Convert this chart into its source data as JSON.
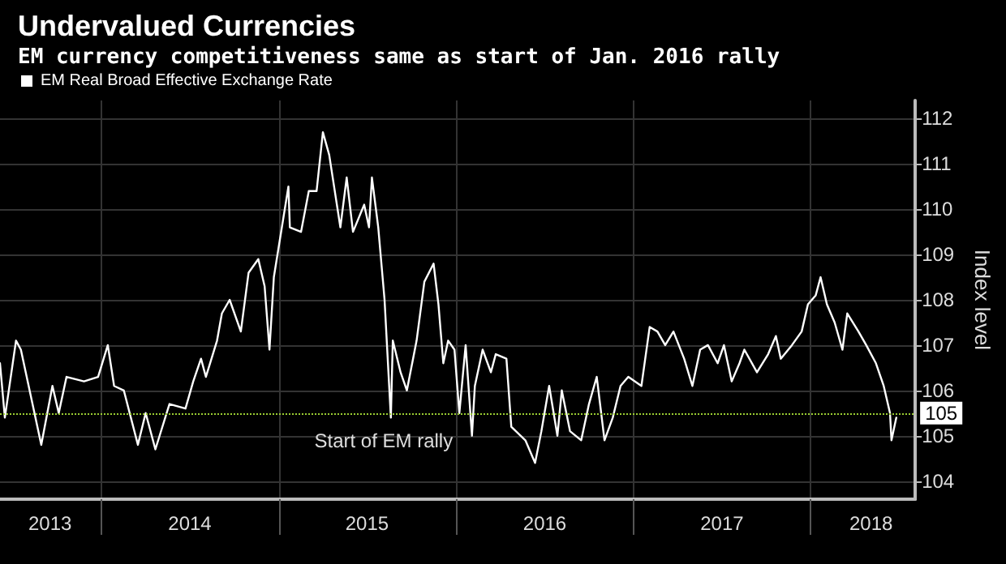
{
  "chart_data": {
    "type": "line",
    "title": "Undervalued Currencies",
    "subtitle": "EM currency competitiveness same as start of Jan. 2016 rally",
    "ylabel": "Index level",
    "x": [
      "2013-06-06",
      "2013-06-16",
      "2013-07-09",
      "2013-07-19",
      "2013-08-04",
      "2013-08-30",
      "2013-09-22",
      "2013-10-05",
      "2013-10-21",
      "2013-11-26",
      "2013-12-25",
      "2014-01-14",
      "2014-01-27",
      "2014-02-16",
      "2014-03-17",
      "2014-04-02",
      "2014-04-22",
      "2014-05-21",
      "2014-06-23",
      "2014-07-09",
      "2014-07-25",
      "2014-08-04",
      "2014-08-27",
      "2014-09-06",
      "2014-09-22",
      "2014-10-15",
      "2014-10-31",
      "2014-11-20",
      "2014-12-03",
      "2014-12-13",
      "2014-12-22",
      "2015-01-21",
      "2015-01-24",
      "2015-02-16",
      "2015-03-04",
      "2015-03-20",
      "2015-04-02",
      "2015-04-15",
      "2015-05-08",
      "2015-05-21",
      "2015-06-03",
      "2015-06-26",
      "2015-07-06",
      "2015-07-12",
      "2015-07-25",
      "2015-08-07",
      "2015-08-20",
      "2015-08-24",
      "2015-09-09",
      "2015-09-22",
      "2015-10-12",
      "2015-10-28",
      "2015-11-16",
      "2015-11-26",
      "2015-12-06",
      "2015-12-16",
      "2015-12-29",
      "2016-01-08",
      "2016-01-21",
      "2016-02-03",
      "2016-02-09",
      "2016-02-25",
      "2016-03-13",
      "2016-03-23",
      "2016-04-14",
      "2016-04-24",
      "2016-05-23",
      "2016-06-12",
      "2016-06-25",
      "2016-07-11",
      "2016-07-28",
      "2016-08-06",
      "2016-08-23",
      "2016-09-15",
      "2016-10-01",
      "2016-10-17",
      "2016-11-02",
      "2016-11-19",
      "2016-12-05",
      "2016-12-21",
      "2017-01-17",
      "2017-02-03",
      "2017-02-19",
      "2017-03-07",
      "2017-03-24",
      "2017-04-15",
      "2017-05-02",
      "2017-05-18",
      "2017-06-03",
      "2017-06-23",
      "2017-07-06",
      "2017-07-22",
      "2017-08-07",
      "2017-08-17",
      "2017-09-12",
      "2017-10-05",
      "2017-10-21",
      "2017-10-31",
      "2017-11-23",
      "2017-12-13",
      "2017-12-26",
      "2018-01-11",
      "2018-01-21",
      "2018-02-03",
      "2018-02-19",
      "2018-03-07",
      "2018-03-17",
      "2018-04-09",
      "2018-04-25",
      "2018-05-15",
      "2018-05-31",
      "2018-06-13",
      "2018-06-16",
      "2018-06-26"
    ],
    "series": [
      {
        "name": "EM Real Broad Effective Exchange Rate",
        "color": "#ffffff",
        "values": [
          106.6,
          105.4,
          107.1,
          106.9,
          106.1,
          104.8,
          106.1,
          105.5,
          106.3,
          106.2,
          106.3,
          107.0,
          106.1,
          106.0,
          104.8,
          105.5,
          104.7,
          105.7,
          105.6,
          106.2,
          106.7,
          106.3,
          107.1,
          107.7,
          108.0,
          107.3,
          108.6,
          108.9,
          108.3,
          106.9,
          108.5,
          110.5,
          109.6,
          109.5,
          110.4,
          110.4,
          111.7,
          111.2,
          109.6,
          110.7,
          109.5,
          110.1,
          109.6,
          110.7,
          109.6,
          108.0,
          105.4,
          107.1,
          106.4,
          106.0,
          107.1,
          108.4,
          108.8,
          107.9,
          106.6,
          107.1,
          106.9,
          105.5,
          107.0,
          105.0,
          106.1,
          106.9,
          106.4,
          106.8,
          106.7,
          105.2,
          104.9,
          104.4,
          105.1,
          106.1,
          105.0,
          106.0,
          105.1,
          104.9,
          105.7,
          106.3,
          104.9,
          105.4,
          106.1,
          106.3,
          106.1,
          107.4,
          107.3,
          107.0,
          107.3,
          106.7,
          106.1,
          106.9,
          107.0,
          106.6,
          107.0,
          106.2,
          106.6,
          106.9,
          106.4,
          106.8,
          107.2,
          106.7,
          107.0,
          107.3,
          107.9,
          108.1,
          108.5,
          107.9,
          107.5,
          106.9,
          107.7,
          107.3,
          107.0,
          106.6,
          106.1,
          105.5,
          104.9,
          105.4
        ]
      }
    ],
    "xlim": [
      "2013-06-06",
      "2018-08-04"
    ],
    "xticks": [
      {
        "value": "2014-01-01",
        "label": null
      },
      {
        "value": "2015-01-01",
        "label": null
      },
      {
        "value": "2016-01-01",
        "label": null
      },
      {
        "value": "2017-01-01",
        "label": null
      },
      {
        "value": "2018-01-01",
        "label": null
      },
      {
        "value": "2013-09-17",
        "label": "2013"
      },
      {
        "value": "2014-07-02",
        "label": "2014"
      },
      {
        "value": "2015-07-02",
        "label": "2015"
      },
      {
        "value": "2016-07-02",
        "label": "2016"
      },
      {
        "value": "2017-07-02",
        "label": "2017"
      },
      {
        "value": "2018-05-05",
        "label": "2018"
      }
    ],
    "ylim": [
      103.6,
      112.4
    ],
    "yticks": [
      104,
      105,
      106,
      107,
      108,
      109,
      110,
      111,
      112
    ],
    "ref_lines": [
      {
        "axis": "y",
        "value": 105.5,
        "label": "105",
        "color": "#9acd32",
        "line_style": "dotted"
      }
    ],
    "annotations": [
      {
        "text": "Start of EM rally",
        "x": "2016-01-08",
        "y": 105.5
      }
    ],
    "grid": true,
    "legend": "top left",
    "marker": "none"
  }
}
